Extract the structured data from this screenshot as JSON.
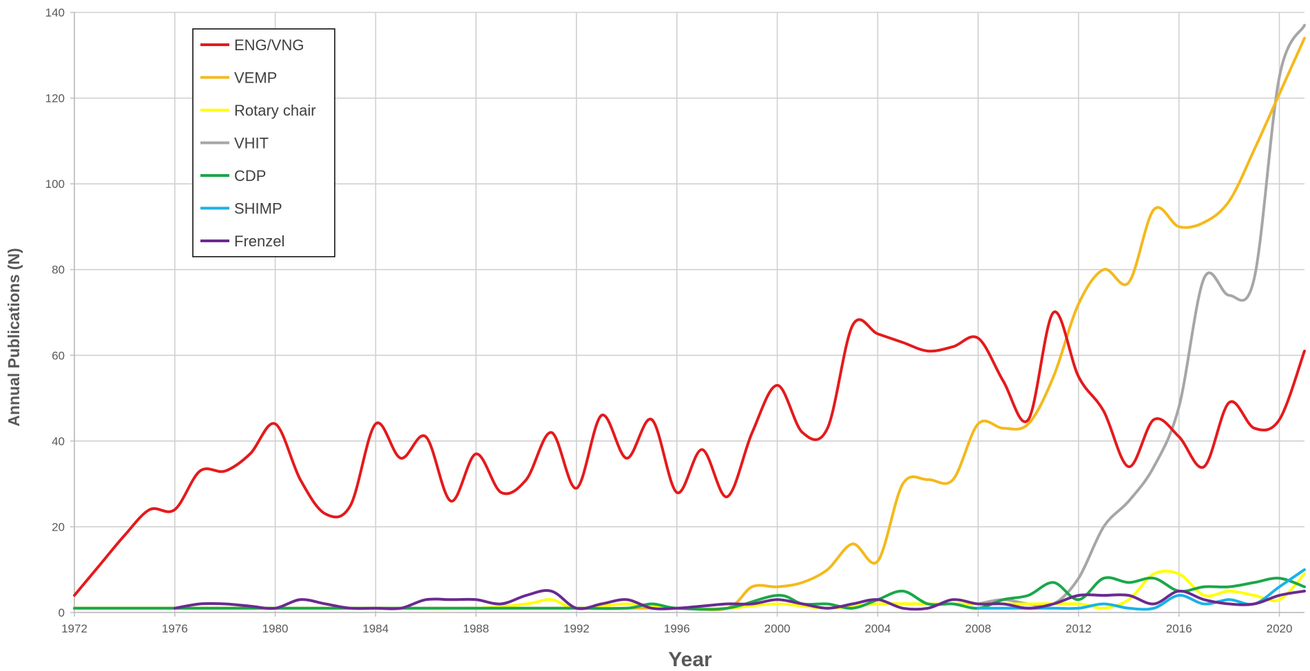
{
  "chart_data": {
    "type": "line",
    "xlabel": "Year",
    "ylabel": "Annual Publications (N)",
    "xlim": [
      1972,
      2021
    ],
    "ylim": [
      0,
      140
    ],
    "x_ticks": [
      1972,
      1976,
      1980,
      1984,
      1988,
      1992,
      1996,
      2000,
      2004,
      2008,
      2012,
      2016,
      2020
    ],
    "y_ticks": [
      0,
      20,
      40,
      60,
      80,
      100,
      120,
      140
    ],
    "grid": true,
    "legend_position": "top-left",
    "series": [
      {
        "name": "ENG/VNG",
        "color": "#e41a1c",
        "x": [
          1972,
          1973,
          1974,
          1975,
          1976,
          1977,
          1978,
          1979,
          1980,
          1981,
          1982,
          1983,
          1984,
          1985,
          1986,
          1987,
          1988,
          1989,
          1990,
          1991,
          1992,
          1993,
          1994,
          1995,
          1996,
          1997,
          1998,
          1999,
          2000,
          2001,
          2002,
          2003,
          2004,
          2005,
          2006,
          2007,
          2008,
          2009,
          2010,
          2011,
          2012,
          2013,
          2014,
          2015,
          2016,
          2017,
          2018,
          2019,
          2020,
          2021
        ],
        "y": [
          4,
          11,
          18,
          24,
          24,
          33,
          33,
          37,
          44,
          31,
          23,
          25,
          44,
          36,
          41,
          26,
          37,
          28,
          31,
          42,
          29,
          46,
          36,
          45,
          28,
          38,
          27,
          42,
          53,
          42,
          43,
          67,
          65,
          63,
          61,
          62,
          64,
          54,
          45,
          70,
          55,
          47,
          34,
          45,
          41,
          34,
          49,
          43,
          45,
          61
        ]
      },
      {
        "name": "VEMP",
        "color": "#f4b91c",
        "x": [
          1972,
          1976,
          1980,
          1984,
          1988,
          1992,
          1996,
          1998,
          1999,
          2000,
          2001,
          2002,
          2003,
          2004,
          2005,
          2006,
          2007,
          2008,
          2009,
          2010,
          2011,
          2012,
          2013,
          2014,
          2015,
          2016,
          2017,
          2018,
          2019,
          2020,
          2021
        ],
        "y": [
          1,
          1,
          1,
          1,
          1,
          1,
          1,
          1,
          6,
          6,
          7,
          10,
          16,
          12,
          30,
          31,
          31,
          44,
          43,
          44,
          55,
          72,
          80,
          77,
          94,
          90,
          91,
          96,
          108,
          121,
          134
        ]
      },
      {
        "name": "Rotary chair",
        "color": "#ffff00",
        "x": [
          1972,
          1976,
          1980,
          1984,
          1988,
          1990,
          1991,
          1992,
          1994,
          1996,
          1998,
          2000,
          2002,
          2004,
          2006,
          2008,
          2010,
          2012,
          2013,
          2014,
          2015,
          2016,
          2017,
          2018,
          2019,
          2020,
          2021
        ],
        "y": [
          1,
          1,
          1,
          1,
          1,
          2,
          3,
          1,
          2,
          1,
          1,
          2,
          1,
          2,
          2,
          2,
          2,
          2,
          1,
          3,
          9,
          9,
          4,
          5,
          4,
          3,
          9
        ]
      },
      {
        "name": "VHIT",
        "color": "#a6a6a6",
        "x": [
          2008,
          2009,
          2010,
          2011,
          2012,
          2013,
          2014,
          2015,
          2016,
          2017,
          2018,
          2019,
          2020,
          2021
        ],
        "y": [
          2,
          3,
          2,
          2,
          8,
          20,
          26,
          34,
          48,
          78,
          74,
          78,
          125,
          137
        ]
      },
      {
        "name": "CDP",
        "color": "#1aa84a",
        "x": [
          1972,
          1976,
          1980,
          1984,
          1988,
          1992,
          1994,
          1995,
          1996,
          1998,
          2000,
          2001,
          2002,
          2003,
          2004,
          2005,
          2006,
          2007,
          2008,
          2009,
          2010,
          2011,
          2012,
          2013,
          2014,
          2015,
          2016,
          2017,
          2018,
          2019,
          2020,
          2021
        ],
        "y": [
          1,
          1,
          1,
          1,
          1,
          1,
          1,
          2,
          1,
          1,
          4,
          2,
          2,
          1,
          3,
          5,
          2,
          2,
          1,
          3,
          4,
          7,
          3,
          8,
          7,
          8,
          5,
          6,
          6,
          7,
          8,
          6
        ]
      },
      {
        "name": "SHIMP",
        "color": "#1ab2e6",
        "x": [
          2008,
          2009,
          2010,
          2011,
          2012,
          2013,
          2014,
          2015,
          2016,
          2017,
          2018,
          2019,
          2020,
          2021
        ],
        "y": [
          1,
          1,
          1,
          1,
          1,
          2,
          1,
          1,
          4,
          2,
          3,
          2,
          6,
          10
        ]
      },
      {
        "name": "Frenzel",
        "color": "#6a2a90",
        "x": [
          1976,
          1977,
          1978,
          1979,
          1980,
          1981,
          1982,
          1983,
          1984,
          1985,
          1986,
          1987,
          1988,
          1989,
          1990,
          1991,
          1992,
          1993,
          1994,
          1995,
          1996,
          1997,
          1998,
          1999,
          2000,
          2001,
          2002,
          2003,
          2004,
          2005,
          2006,
          2007,
          2008,
          2009,
          2010,
          2011,
          2012,
          2013,
          2014,
          2015,
          2016,
          2017,
          2018,
          2019,
          2020,
          2021
        ],
        "y": [
          1,
          2,
          2,
          1.5,
          1,
          3,
          2,
          1,
          1,
          1,
          3,
          3,
          3,
          2,
          4,
          5,
          1,
          2,
          3,
          1,
          1,
          1.5,
          2,
          2,
          3,
          2,
          1,
          2,
          3,
          1,
          1,
          3,
          2,
          2,
          1,
          2,
          4,
          4,
          4,
          2,
          5,
          3,
          2,
          2,
          4,
          5
        ]
      }
    ]
  }
}
